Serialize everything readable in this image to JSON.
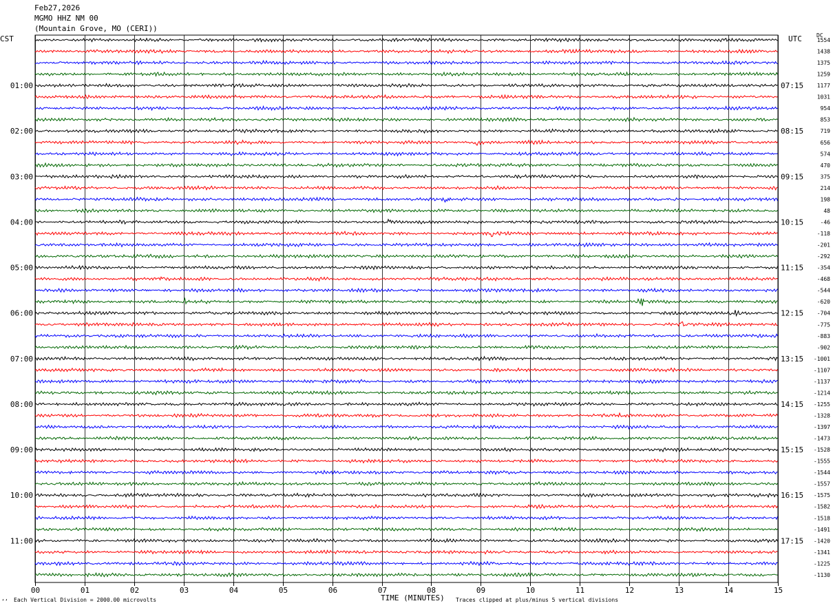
{
  "header": {
    "date": "Feb27,2026",
    "station": "MGMO HHZ NM 00",
    "location": "(Mountain Grove, MO (CERI))"
  },
  "left_axis_title": "CST",
  "right_axis_title": "UTC",
  "dc_title": "DC",
  "footer": {
    "x_axis_title": "TIME (MINUTES)",
    "scale_note": "Each Vertical Division = 2000.00 microvolts",
    "clip_note": "Traces clipped at plus/minus 5 vertical divisions",
    "corner_mark": "‘‘"
  },
  "colors": {
    "cycle": [
      "#000000",
      "#ff0000",
      "#0000ff",
      "#006600"
    ],
    "grid": "#000000"
  },
  "chart_data": {
    "type": "line",
    "title": "MGMO HHZ NM 00",
    "xlabel": "TIME (MINUTES)",
    "x_range": [
      0,
      15
    ],
    "x_ticks": [
      "00",
      "01",
      "02",
      "03",
      "04",
      "05",
      "06",
      "07",
      "08",
      "09",
      "10",
      "11",
      "12",
      "13",
      "14",
      "15"
    ],
    "trace_count": 48,
    "trace_minutes": 15,
    "left_hour_labels": [
      {
        "trace": 4,
        "label": "01:00"
      },
      {
        "trace": 8,
        "label": "02:00"
      },
      {
        "trace": 12,
        "label": "03:00"
      },
      {
        "trace": 16,
        "label": "04:00"
      },
      {
        "trace": 20,
        "label": "05:00"
      },
      {
        "trace": 24,
        "label": "06:00"
      },
      {
        "trace": 28,
        "label": "07:00"
      },
      {
        "trace": 32,
        "label": "08:00"
      },
      {
        "trace": 36,
        "label": "09:00"
      },
      {
        "trace": 40,
        "label": "10:00"
      },
      {
        "trace": 44,
        "label": "11:00"
      }
    ],
    "right_hour_labels": [
      {
        "trace": 4,
        "label": "07:15"
      },
      {
        "trace": 8,
        "label": "08:15"
      },
      {
        "trace": 12,
        "label": "09:15"
      },
      {
        "trace": 16,
        "label": "10:15"
      },
      {
        "trace": 20,
        "label": "11:15"
      },
      {
        "trace": 24,
        "label": "12:15"
      },
      {
        "trace": 28,
        "label": "13:15"
      },
      {
        "trace": 32,
        "label": "14:15"
      },
      {
        "trace": 36,
        "label": "15:15"
      },
      {
        "trace": 40,
        "label": "16:15"
      },
      {
        "trace": 44,
        "label": "17:15"
      }
    ],
    "dc_offsets": [
      1554,
      1438,
      1375,
      1259,
      1177,
      1031,
      954,
      853,
      719,
      656,
      574,
      470,
      375,
      214,
      198,
      48,
      -46,
      -118,
      -201,
      -292,
      -354,
      -468,
      -544,
      -620,
      -704,
      -775,
      -883,
      -902,
      -1001,
      -1107,
      -1137,
      -1214,
      -1255,
      -1328,
      -1397,
      -1473,
      -1528,
      -1555,
      -1544,
      -1557,
      -1575,
      -1582,
      -1518,
      -1491,
      -1420,
      -1341,
      -1225,
      -1130
    ],
    "events": [
      {
        "trace": 17,
        "minute": 9.2,
        "level": 2.2
      },
      {
        "trace": 23,
        "minute": 12.2,
        "level": 3.2
      },
      {
        "trace": 23,
        "minute": 3.0,
        "level": 1.4
      },
      {
        "trace": 24,
        "minute": 14.1,
        "level": 1.8
      },
      {
        "trace": 25,
        "minute": 13.0,
        "level": 1.8
      },
      {
        "trace": 9,
        "minute": 8.9,
        "level": 1.5
      },
      {
        "trace": 16,
        "minute": 7.1,
        "level": 1.4
      },
      {
        "trace": 21,
        "minute": 2.5,
        "level": 1.3
      },
      {
        "trace": 14,
        "minute": 8.3,
        "level": 1.3
      },
      {
        "trace": 33,
        "minute": 11.8,
        "level": 1.3
      }
    ]
  }
}
